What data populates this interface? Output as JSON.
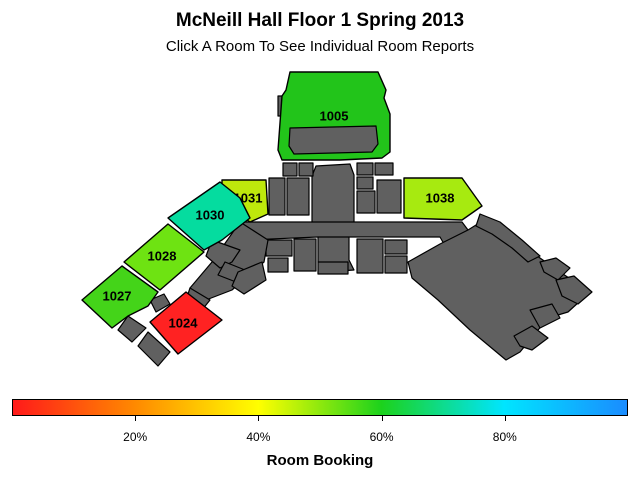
{
  "title": "McNeill Hall Floor 1 Spring 2013",
  "subtitle": "Click A Room To See Individual Room Reports",
  "rooms": [
    {
      "id": "1005",
      "booking_fraction": 0.68,
      "color": "#22c41a"
    },
    {
      "id": "1031",
      "booking_fraction": 0.55,
      "color": "#bee80c"
    },
    {
      "id": "1030",
      "booking_fraction": 0.76,
      "color": "#05dc9f"
    },
    {
      "id": "1028",
      "booking_fraction": 0.62,
      "color": "#6ee312"
    },
    {
      "id": "1027",
      "booking_fraction": 0.65,
      "color": "#44d419"
    },
    {
      "id": "1024",
      "booking_fraction": 0.03,
      "color": "#ff2222"
    },
    {
      "id": "1038",
      "booking_fraction": 0.57,
      "color": "#a7ea10"
    }
  ],
  "legend": {
    "label": "Room Booking",
    "ticks": [
      "20%",
      "40%",
      "60%",
      "80%"
    ],
    "tick_values": [
      20,
      40,
      60,
      80
    ],
    "range": [
      0,
      100
    ],
    "gradient": [
      "#ff1a1a",
      "#ff8a00",
      "#ffff00",
      "#1cd21c",
      "#00e5ff",
      "#1a8cff"
    ]
  },
  "colors": {
    "structure": "#606060",
    "background": "#ffffff"
  }
}
